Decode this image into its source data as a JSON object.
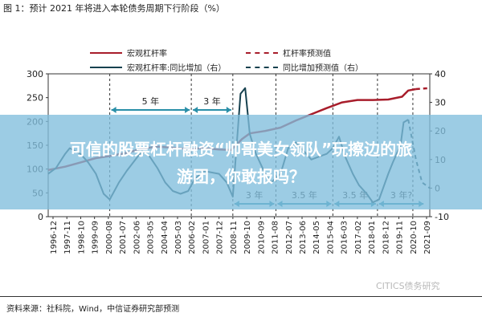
{
  "figure_title": "图 1：预计 2021 年将进入本轮债务周期下行阶段（%）",
  "legend": {
    "leverage": "宏观杠杆率",
    "leverage_yoy": "宏观杠杆率:同比增加（右）",
    "leverage_forecast": "杠杆率预测值",
    "yoy_forecast": "同比增加预测值（右）"
  },
  "banner": {
    "line1": "可信的股票杠杆融资“帅哥美女领队”玩擦边的旅",
    "line2": "游团，你敢报吗？"
  },
  "source": "资料来源：社科院，Wind，中信证券研究部预测",
  "watermark": "CITICS债务研究",
  "colors": {
    "leverage": "#a81d2b",
    "yoy": "#16414f",
    "banner": "#80bedd",
    "annotation": "#2a8fa8"
  },
  "chart_data": {
    "type": "line",
    "title": "",
    "x_ticks": [
      "1996-12",
      "1997-11",
      "1998-10",
      "1999-09",
      "2000-08",
      "2001-07",
      "2002-06",
      "2003-05",
      "2004-04",
      "2005-03",
      "2006-02",
      "2007-01",
      "2007-12",
      "2008-11",
      "2009-10",
      "2010-09",
      "2011-08",
      "2012-07",
      "2013-06",
      "2014-05",
      "2015-04",
      "2016-03",
      "2017-02",
      "2018-01",
      "2018-12",
      "2019-11",
      "2020-10",
      "2021-09"
    ],
    "ylim_left": [
      0,
      300
    ],
    "yticks_left": [
      0,
      50,
      100,
      150,
      200,
      250,
      300
    ],
    "ylim_right": [
      -10,
      40
    ],
    "yticks_right": [
      -10,
      0,
      10,
      20,
      30,
      40
    ],
    "series": [
      {
        "name": "宏观杠杆率",
        "axis": "left",
        "x": [
          1996.9,
          1998,
          1999,
          2000,
          2001,
          2002,
          2003,
          2004,
          2005,
          2006,
          2007,
          2008,
          2008.8,
          2009.5,
          2010,
          2011,
          2012,
          2013,
          2014,
          2015,
          2016,
          2017,
          2018,
          2019,
          2019.9,
          2020.3,
          2020.8
        ],
        "values": [
          98,
          105,
          114,
          123,
          128,
          134,
          143,
          147,
          145,
          142,
          144,
          141,
          140,
          163,
          175,
          180,
          187,
          202,
          215,
          228,
          240,
          245,
          245,
          246,
          252,
          265,
          268
        ]
      },
      {
        "name": "杠杆率预测值",
        "axis": "left",
        "x": [
          2020.8,
          2021.7
        ],
        "values": [
          268,
          270
        ]
      },
      {
        "name": "宏观杠杆率:同比增加（右）",
        "axis": "right",
        "x": [
          1996.9,
          1997.4,
          1998,
          1998.3,
          1999,
          1999.5,
          2000,
          2000.5,
          2000.9,
          2001.5,
          2002,
          2003,
          2003.5,
          2004,
          2004.5,
          2005,
          2005.5,
          2006,
          2006.4,
          2007,
          2008,
          2008.5,
          2008.9,
          2009.4,
          2009.7,
          2010,
          2010.4,
          2011,
          2011.4,
          2012,
          2012.5,
          2013,
          2013.5,
          2014,
          2014.5,
          2015,
          2015.4,
          2015.8,
          2016.2,
          2016.7,
          2017.1,
          2017.6,
          2018,
          2018.4,
          2019,
          2019.3,
          2019.8,
          2020,
          2020.3
        ],
        "values": [
          5,
          7,
          12,
          14,
          12,
          9,
          5,
          -2,
          -4,
          2,
          6,
          13,
          11,
          7,
          2,
          -1,
          -2,
          -1,
          3,
          6,
          5,
          2,
          -3,
          33,
          35,
          19,
          12,
          5,
          2,
          5,
          14,
          16,
          13,
          10,
          11,
          12,
          14,
          18,
          11,
          5,
          1,
          -2,
          -5,
          -4,
          5,
          9,
          15,
          23,
          24
        ]
      },
      {
        "name": "同比增加预测值（右）",
        "axis": "right",
        "x": [
          2020.3,
          2020.8,
          2021.2,
          2021.7
        ],
        "values": [
          24,
          10,
          2,
          0
        ]
      }
    ],
    "cycle_markers": [
      2000.9,
      2006.2,
      2008.9,
      2011.7,
      2015.4,
      2018.3,
      2020.6
    ],
    "annotations_top": [
      {
        "label": "5 年",
        "from": 2000.9,
        "to": 2006.2
      },
      {
        "label": "3 年",
        "from": 2006.2,
        "to": 2008.9
      }
    ],
    "annotations_bottom": [
      {
        "label": "3 年",
        "from": 2008.9,
        "to": 2011.7
      },
      {
        "label": "3.5 年",
        "from": 2011.7,
        "to": 2015.4
      },
      {
        "label": "3.5 年",
        "from": 2015.4,
        "to": 2018.3
      },
      {
        "label": "3 年?",
        "from": 2018.3,
        "to": 2021.4
      }
    ]
  }
}
